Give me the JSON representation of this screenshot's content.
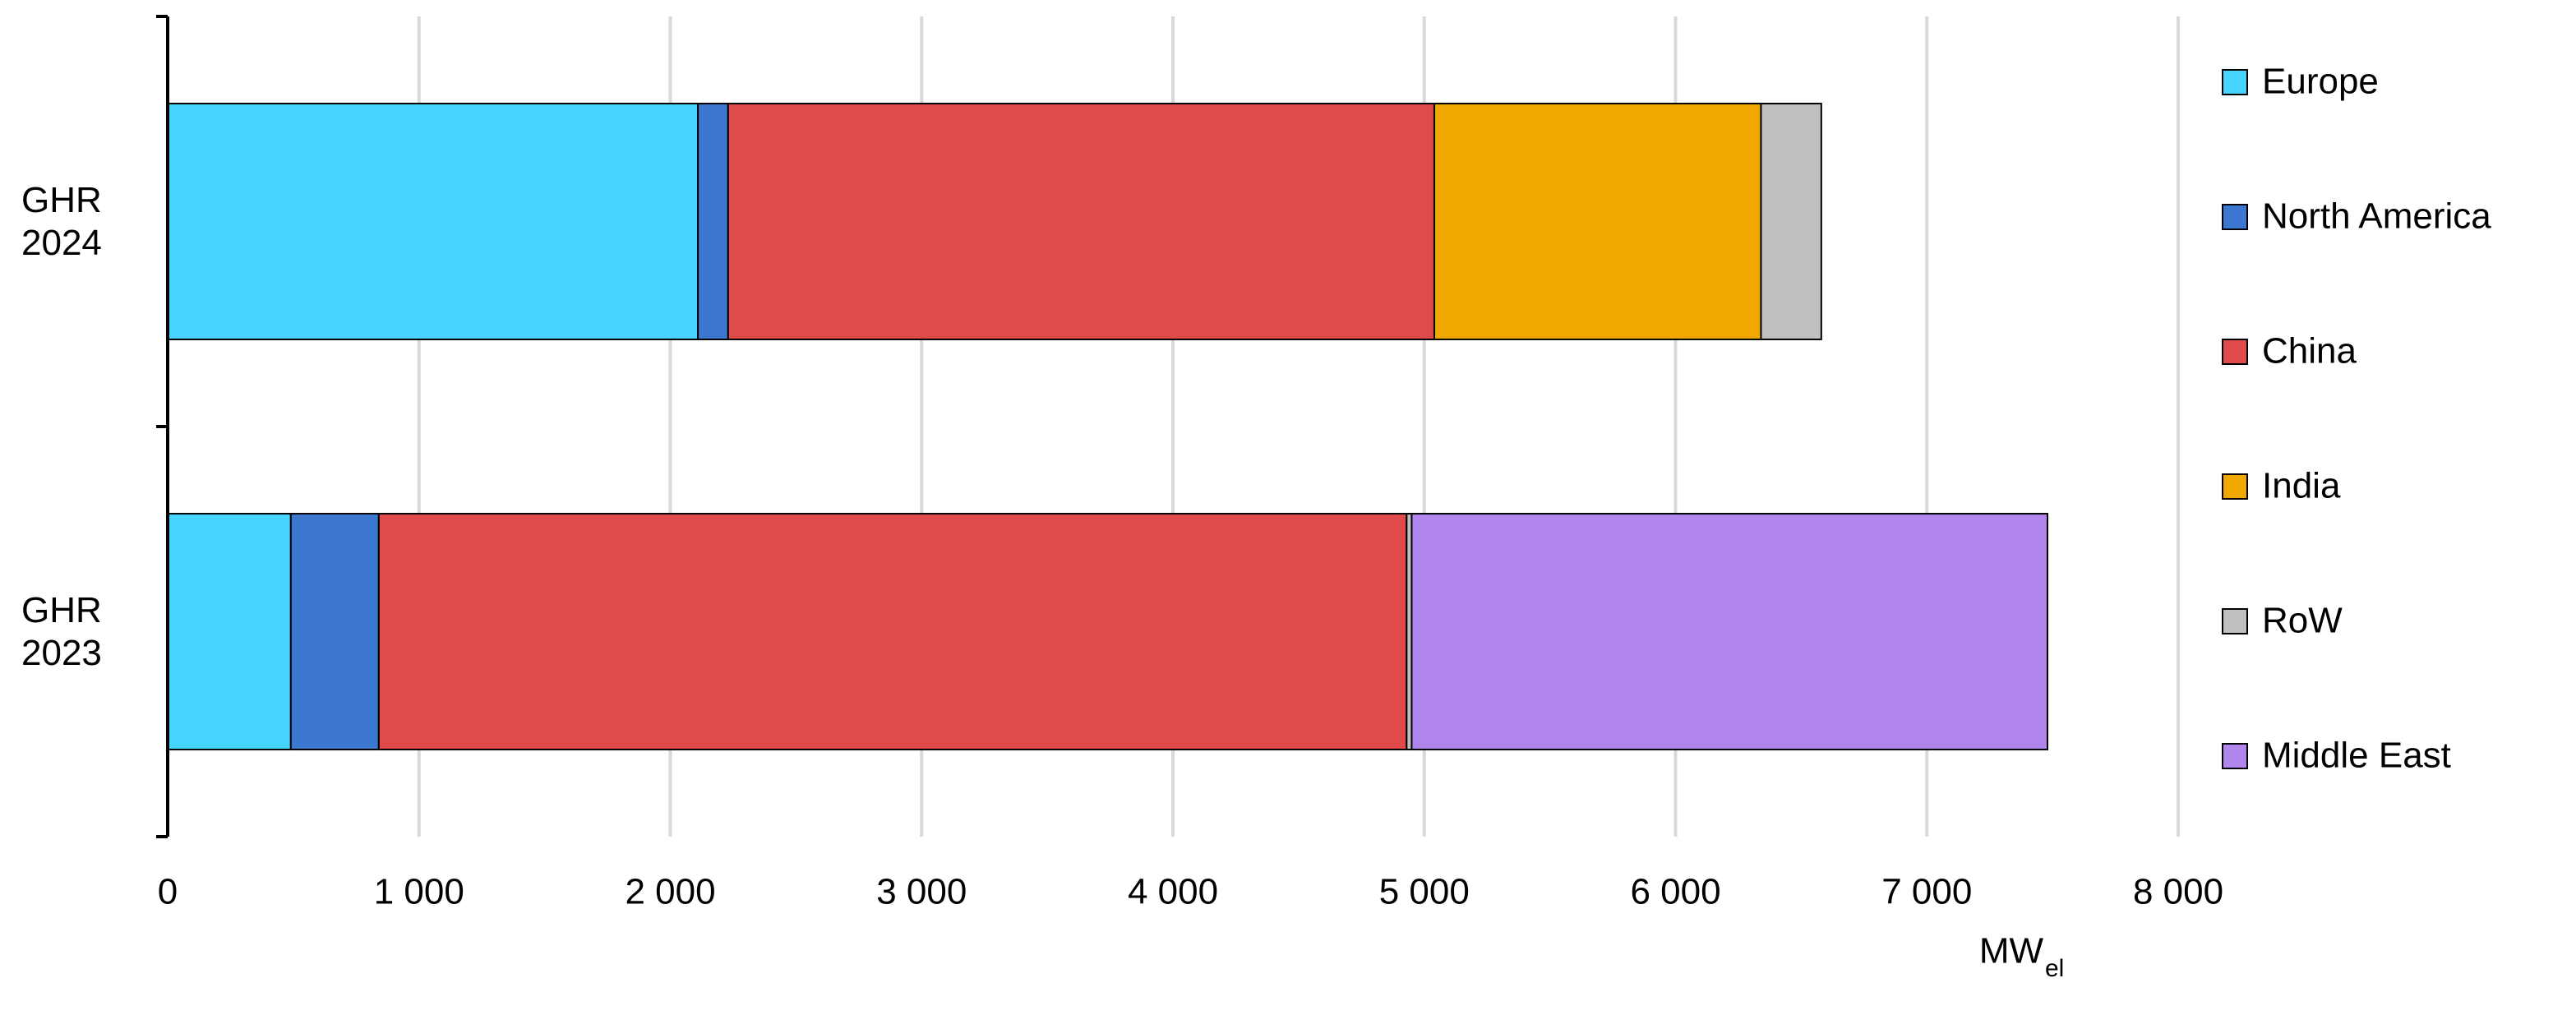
{
  "chart_data": {
    "type": "stacked-bar-horizontal",
    "categories": [
      "GHR 2024",
      "GHR 2023"
    ],
    "series": [
      {
        "name": "Europe",
        "color": "#47d4ff",
        "values": [
          2110,
          490
        ]
      },
      {
        "name": "North America",
        "color": "#3c78d0",
        "values": [
          120,
          350
        ]
      },
      {
        "name": "China",
        "color": "#e04a4a",
        "values": [
          2810,
          4090
        ]
      },
      {
        "name": "India",
        "color": "#f0a800",
        "values": [
          1300,
          0
        ]
      },
      {
        "name": "RoW",
        "color": "#c0c0c0",
        "values": [
          240,
          20
        ]
      },
      {
        "name": "Middle East",
        "color": "#b085ec",
        "values": [
          0,
          2530
        ]
      }
    ],
    "xlim": [
      0,
      8000
    ],
    "xticks": [
      0,
      {
        "value": 1000,
        "label": "1 000"
      },
      {
        "value": 2000,
        "label": "2 000"
      },
      {
        "value": 3000,
        "label": "3 000"
      },
      {
        "value": 4000,
        "label": "4 000"
      },
      {
        "value": 5000,
        "label": "5 000"
      },
      {
        "value": 6000,
        "label": "6 000"
      },
      {
        "value": 7000,
        "label": "7 000"
      },
      {
        "value": 8000,
        "label": "8 000"
      }
    ],
    "xlabel": "MW",
    "xlabel_sub": "el",
    "grid": true,
    "legend": "right"
  }
}
